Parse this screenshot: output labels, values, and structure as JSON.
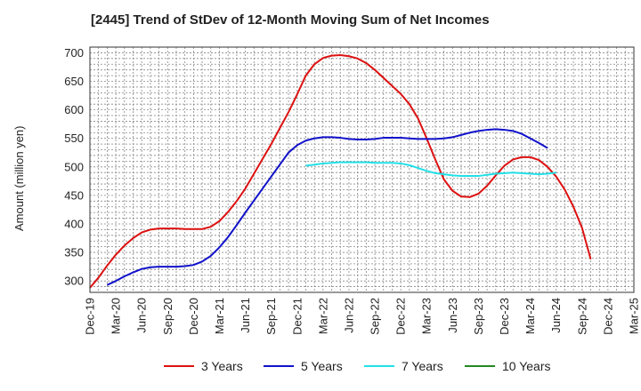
{
  "chart_data": {
    "type": "line",
    "title": "[2445]  Trend of StDev of 12-Month Moving Sum of Net Incomes",
    "ylabel": "Amount (million yen)",
    "xlabel": "",
    "ylim": [
      280,
      710
    ],
    "yticks": [
      300,
      350,
      400,
      450,
      500,
      550,
      600,
      650,
      700
    ],
    "x_ticks": [
      "Dec-19",
      "Mar-20",
      "Jun-20",
      "Sep-20",
      "Dec-20",
      "Mar-21",
      "Jun-21",
      "Sep-21",
      "Dec-21",
      "Mar-22",
      "Jun-22",
      "Sep-22",
      "Dec-22",
      "Mar-23",
      "Jun-23",
      "Sep-23",
      "Dec-23",
      "Mar-24",
      "Jun-24",
      "Sep-24",
      "Dec-24",
      "Mar-25"
    ],
    "grid": true,
    "legend_position": "bottom",
    "series": [
      {
        "name": "3 Years",
        "color": "#dd1111",
        "points": [
          [
            0,
            288
          ],
          [
            1,
            306
          ],
          [
            2,
            327
          ],
          [
            3,
            346
          ],
          [
            4,
            362
          ],
          [
            5,
            375
          ],
          [
            6,
            385
          ],
          [
            7,
            390
          ],
          [
            8,
            392
          ],
          [
            9,
            392
          ],
          [
            10,
            392
          ],
          [
            11,
            391
          ],
          [
            12,
            391
          ],
          [
            13,
            391
          ],
          [
            14,
            395
          ],
          [
            15,
            405
          ],
          [
            16,
            421
          ],
          [
            17,
            440
          ],
          [
            18,
            462
          ],
          [
            19,
            488
          ],
          [
            20,
            514
          ],
          [
            21,
            540
          ],
          [
            22,
            568
          ],
          [
            23,
            596
          ],
          [
            24,
            627
          ],
          [
            25,
            660
          ],
          [
            26,
            680
          ],
          [
            27,
            691
          ],
          [
            28,
            695
          ],
          [
            29,
            696
          ],
          [
            30,
            694
          ],
          [
            31,
            690
          ],
          [
            32,
            682
          ],
          [
            33,
            670
          ],
          [
            34,
            656
          ],
          [
            35,
            642
          ],
          [
            36,
            628
          ],
          [
            37,
            610
          ],
          [
            38,
            585
          ],
          [
            39,
            550
          ],
          [
            40,
            513
          ],
          [
            41,
            478
          ],
          [
            42,
            458
          ],
          [
            43,
            448
          ],
          [
            44,
            447
          ],
          [
            45,
            453
          ],
          [
            46,
            467
          ],
          [
            47,
            485
          ],
          [
            48,
            502
          ],
          [
            49,
            513
          ],
          [
            50,
            517
          ],
          [
            51,
            517
          ],
          [
            52,
            512
          ],
          [
            53,
            500
          ],
          [
            54,
            483
          ],
          [
            55,
            460
          ],
          [
            56,
            430
          ],
          [
            57,
            393
          ],
          [
            58,
            338
          ]
        ]
      },
      {
        "name": "5 Years",
        "color": "#1111cc",
        "points": [
          [
            2,
            293
          ],
          [
            3,
            300
          ],
          [
            4,
            308
          ],
          [
            5,
            315
          ],
          [
            6,
            321
          ],
          [
            7,
            324
          ],
          [
            8,
            325
          ],
          [
            9,
            325
          ],
          [
            10,
            325
          ],
          [
            11,
            326
          ],
          [
            12,
            328
          ],
          [
            13,
            334
          ],
          [
            14,
            344
          ],
          [
            15,
            359
          ],
          [
            16,
            377
          ],
          [
            17,
            398
          ],
          [
            18,
            420
          ],
          [
            19,
            441
          ],
          [
            20,
            462
          ],
          [
            21,
            483
          ],
          [
            22,
            504
          ],
          [
            23,
            525
          ],
          [
            24,
            538
          ],
          [
            25,
            546
          ],
          [
            26,
            550
          ],
          [
            27,
            552
          ],
          [
            28,
            552
          ],
          [
            29,
            551
          ],
          [
            30,
            549
          ],
          [
            31,
            548
          ],
          [
            32,
            548
          ],
          [
            33,
            549
          ],
          [
            34,
            551
          ],
          [
            35,
            551
          ],
          [
            36,
            551
          ],
          [
            37,
            550
          ],
          [
            38,
            549
          ],
          [
            39,
            549
          ],
          [
            40,
            549
          ],
          [
            41,
            550
          ],
          [
            42,
            552
          ],
          [
            43,
            556
          ],
          [
            44,
            560
          ],
          [
            45,
            563
          ],
          [
            46,
            565
          ],
          [
            47,
            566
          ],
          [
            48,
            565
          ],
          [
            49,
            563
          ],
          [
            50,
            558
          ],
          [
            51,
            550
          ],
          [
            52,
            542
          ],
          [
            53,
            533
          ]
        ]
      },
      {
        "name": "7 Years",
        "color": "#22e0e8",
        "points": [
          [
            25,
            502
          ],
          [
            26,
            504
          ],
          [
            27,
            506
          ],
          [
            28,
            507
          ],
          [
            29,
            508
          ],
          [
            30,
            508
          ],
          [
            31,
            508
          ],
          [
            32,
            508
          ],
          [
            33,
            507
          ],
          [
            34,
            507
          ],
          [
            35,
            507
          ],
          [
            36,
            506
          ],
          [
            37,
            503
          ],
          [
            38,
            498
          ],
          [
            39,
            493
          ],
          [
            40,
            489
          ],
          [
            41,
            487
          ],
          [
            42,
            485
          ],
          [
            43,
            484
          ],
          [
            44,
            484
          ],
          [
            45,
            484
          ],
          [
            46,
            486
          ],
          [
            47,
            488
          ],
          [
            48,
            489
          ],
          [
            49,
            490
          ],
          [
            50,
            489
          ],
          [
            51,
            488
          ],
          [
            52,
            487
          ],
          [
            53,
            488
          ],
          [
            54,
            490
          ]
        ]
      },
      {
        "name": "10 Years",
        "color": "#228822",
        "points": []
      }
    ]
  }
}
